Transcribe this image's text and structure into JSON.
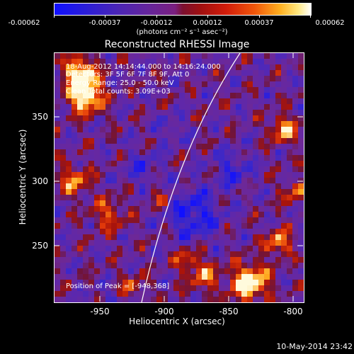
{
  "colorbar": {
    "tick_labels": [
      "-0.00062",
      "-0.00037",
      "-0.00012",
      "0.00012",
      "0.00037",
      "0.00062"
    ],
    "units": "(photons cm⁻² s⁻¹ asec⁻²)"
  },
  "plot": {
    "title": "Reconstructed RHESSI Image",
    "time_range": "18-Aug-2012 14:14:44.000 to 14:16:24.000",
    "detectors": "Detectors: 3F 5F 6F 7F 8F 9F, Att 0",
    "energy_range": "Energy Range: 25.0 - 50.0 keV",
    "clean_counts": "Clean    Total counts: 3.09E+03",
    "peak_position": "Position of Peak = [-948,368]",
    "xlabel": "Heliocentric X (arcsec)",
    "ylabel": "Heliocentric Y (arcsec)",
    "xtick_labels": [
      "-950",
      "-900",
      "-850",
      "-800"
    ],
    "ytick_labels": [
      "350",
      "300",
      "250"
    ],
    "limb_color": "#ffffff"
  },
  "chart_data": {
    "type": "heatmap",
    "title": "Reconstructed RHESSI Image",
    "xlabel": "Heliocentric X (arcsec)",
    "ylabel": "Heliocentric Y (arcsec)",
    "xlim": [
      -976,
      -794
    ],
    "ylim": [
      205,
      388
    ],
    "color_range": [
      -0.00062,
      0.00062
    ],
    "peak": [
      -948,
      368
    ]
  },
  "timestamp": "10-May-2014 23:42"
}
